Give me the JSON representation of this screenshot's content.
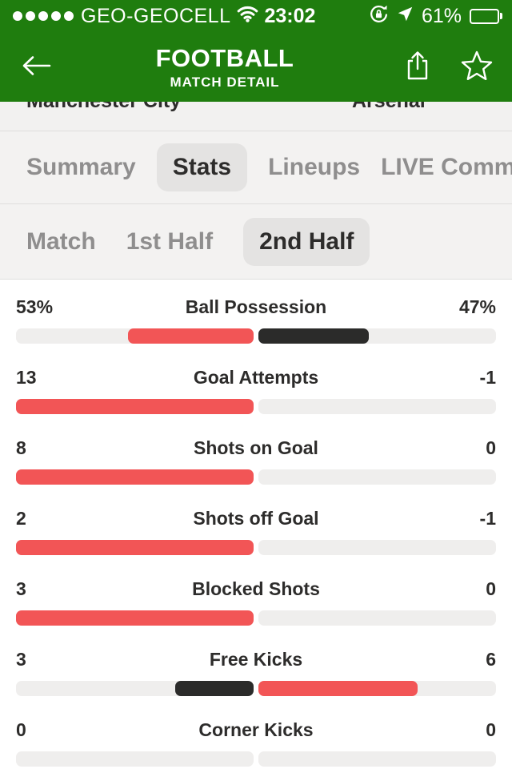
{
  "colors": {
    "green": "#1f7d0e",
    "red": "#f25556",
    "dark": "#2b2b2a",
    "track": "#efeeed",
    "text_dark": "#2d2c2b",
    "tab_gray": "#8f8e8e"
  },
  "status_bar": {
    "carrier": "GEO-GEOCELL",
    "time": "23:02",
    "battery_pct": "61%",
    "battery_level": 61,
    "signal_dots": 5
  },
  "header": {
    "title": "FOOTBALL",
    "subtitle": "MATCH DETAIL"
  },
  "match": {
    "home_team": "Manchester City",
    "away_team": "Arsenal"
  },
  "tabs": [
    {
      "label": "Summary",
      "active": false
    },
    {
      "label": "Stats",
      "active": true
    },
    {
      "label": "Lineups",
      "active": false
    },
    {
      "label": "LIVE Commentary",
      "active": false
    }
  ],
  "subtabs": [
    {
      "label": "Match",
      "active": false
    },
    {
      "label": "1st Half",
      "active": false,
      "lighter": false
    },
    {
      "label": "2nd Half",
      "active": true
    }
  ],
  "stats": {
    "rows": [
      {
        "name": "Ball Possession",
        "home": "53%",
        "away": "47%",
        "home_bar": {
          "pct": 53,
          "color": "red"
        },
        "away_bar": {
          "pct": 46.5,
          "color": "dark"
        }
      },
      {
        "name": "Goal Attempts",
        "home": "13",
        "away": "-1",
        "home_bar": {
          "pct": 100,
          "color": "red"
        },
        "away_bar": {
          "pct": 0,
          "color": "none"
        }
      },
      {
        "name": "Shots on Goal",
        "home": "8",
        "away": "0",
        "home_bar": {
          "pct": 100,
          "color": "red"
        },
        "away_bar": {
          "pct": 0,
          "color": "none"
        }
      },
      {
        "name": "Shots off Goal",
        "home": "2",
        "away": "-1",
        "home_bar": {
          "pct": 100,
          "color": "red"
        },
        "away_bar": {
          "pct": 0,
          "color": "none"
        }
      },
      {
        "name": "Blocked Shots",
        "home": "3",
        "away": "0",
        "home_bar": {
          "pct": 100,
          "color": "red"
        },
        "away_bar": {
          "pct": 0,
          "color": "none"
        }
      },
      {
        "name": "Free Kicks",
        "home": "3",
        "away": "6",
        "home_bar": {
          "pct": 33,
          "color": "dark"
        },
        "away_bar": {
          "pct": 67,
          "color": "red"
        }
      },
      {
        "name": "Corner Kicks",
        "home": "0",
        "away": "0",
        "home_bar": {
          "pct": 0,
          "color": "none"
        },
        "away_bar": {
          "pct": 0,
          "color": "none"
        }
      }
    ]
  }
}
